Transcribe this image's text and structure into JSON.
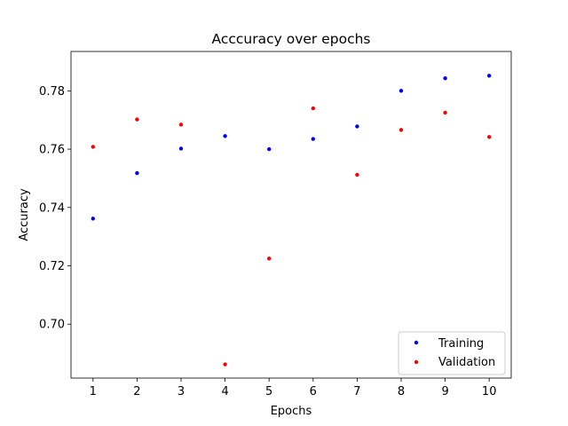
{
  "chart_data": {
    "type": "scatter",
    "title": "Acccuracy over epochs",
    "xlabel": "Epochs",
    "ylabel": "Accuracy",
    "x": [
      1,
      2,
      3,
      4,
      5,
      6,
      7,
      8,
      9,
      10
    ],
    "xlim": [
      0.5,
      10.5
    ],
    "ylim": [
      0.6815,
      0.7935
    ],
    "xticks": [
      1,
      2,
      3,
      4,
      5,
      6,
      7,
      8,
      9,
      10
    ],
    "yticks": [
      0.7,
      0.72,
      0.74,
      0.76,
      0.78
    ],
    "ytick_labels": [
      "0.70",
      "0.72",
      "0.74",
      "0.76",
      "0.78"
    ],
    "grid": false,
    "legend_position": "lower-right",
    "series": [
      {
        "name": "Training",
        "color": "#0000ff",
        "values": [
          0.7362,
          0.7518,
          0.7602,
          0.7645,
          0.76,
          0.7635,
          0.7678,
          0.78,
          0.7843,
          0.7852
        ]
      },
      {
        "name": "Validation",
        "color": "#ff0000",
        "values": [
          0.7608,
          0.7702,
          0.7684,
          0.6862,
          0.7225,
          0.774,
          0.7512,
          0.7666,
          0.7725,
          0.7642
        ]
      }
    ]
  }
}
